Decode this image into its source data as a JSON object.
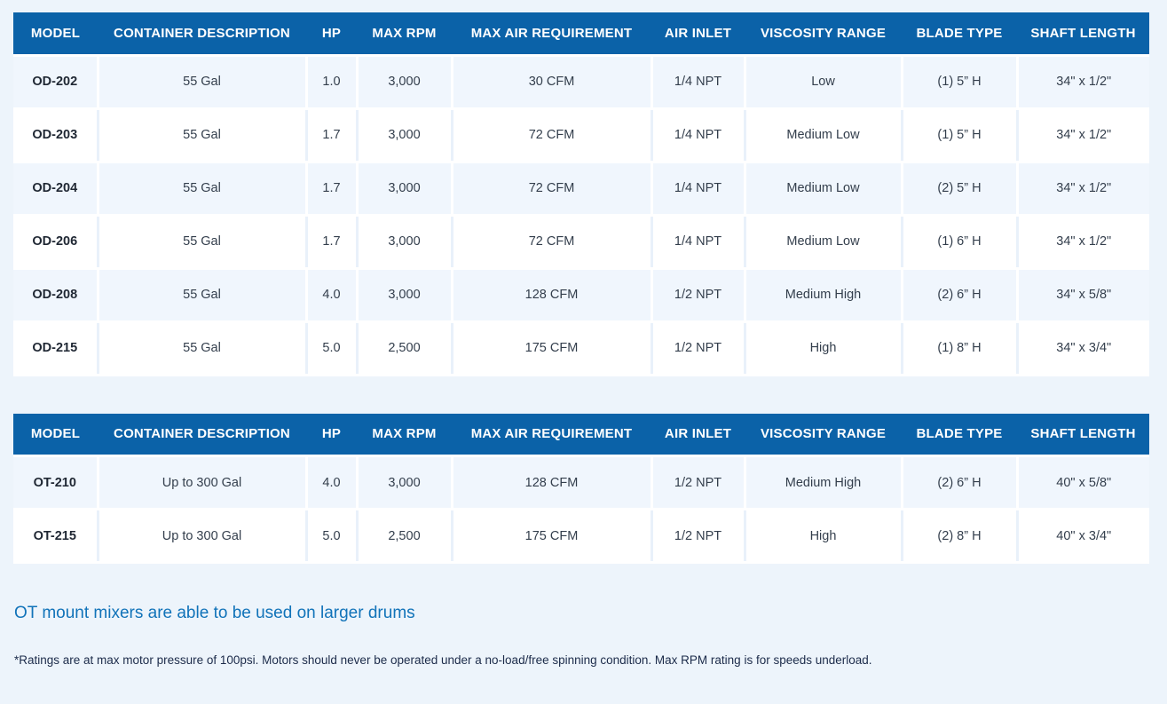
{
  "colors": {
    "page_background": "#edf4fb",
    "header_background": "#0b62a8",
    "header_text": "#ffffff",
    "alt_row_background": "#f0f6fd",
    "row_background": "#ffffff",
    "note_heading_text": "#1173b9",
    "footnote_text": "#1c2b4a"
  },
  "columns": [
    "MODEL",
    "CONTAINER DESCRIPTION",
    "HP",
    "MAX RPM",
    "MAX AIR REQUIREMENT",
    "AIR INLET",
    "VISCOSITY RANGE",
    "BLADE TYPE",
    "SHAFT LENGTH"
  ],
  "tables": [
    {
      "name": "od-series-spec-table",
      "rows": [
        [
          "OD-202",
          "55 Gal",
          "1.0",
          "3,000",
          "30 CFM",
          "1/4 NPT",
          "Low",
          "(1) 5” H",
          "34\" x 1/2\""
        ],
        [
          "OD-203",
          "55 Gal",
          "1.7",
          "3,000",
          "72 CFM",
          "1/4 NPT",
          "Medium Low",
          "(1) 5” H",
          "34\" x 1/2\""
        ],
        [
          "OD-204",
          "55 Gal",
          "1.7",
          "3,000",
          "72 CFM",
          "1/4 NPT",
          "Medium Low",
          "(2) 5” H",
          "34\" x 1/2\""
        ],
        [
          "OD-206",
          "55 Gal",
          "1.7",
          "3,000",
          "72 CFM",
          "1/4 NPT",
          "Medium Low",
          "(1) 6” H",
          "34\" x 1/2\""
        ],
        [
          "OD-208",
          "55 Gal",
          "4.0",
          "3,000",
          "128 CFM",
          "1/2 NPT",
          "Medium High",
          "(2) 6” H",
          "34\" x 5/8\""
        ],
        [
          "OD-215",
          "55 Gal",
          "5.0",
          "2,500",
          "175 CFM",
          "1/2 NPT",
          "High",
          "(1) 8” H",
          "34\" x 3/4\""
        ]
      ]
    },
    {
      "name": "ot-series-spec-table",
      "rows": [
        [
          "OT-210",
          "Up to 300 Gal",
          "4.0",
          "3,000",
          "128 CFM",
          "1/2 NPT",
          "Medium High",
          "(2) 6” H",
          "40\" x 5/8\""
        ],
        [
          "OT-215",
          "Up to 300 Gal",
          "5.0",
          "2,500",
          "175 CFM",
          "1/2 NPT",
          "High",
          "(2) 8” H",
          "40\" x 3/4\""
        ]
      ]
    }
  ],
  "note_heading": "OT mount mixers are able to be used on larger drums",
  "footnote": "*Ratings are at max motor pressure of 100psi. Motors should never be operated under a no-load/free spinning condition. Max RPM rating is for speeds underload."
}
